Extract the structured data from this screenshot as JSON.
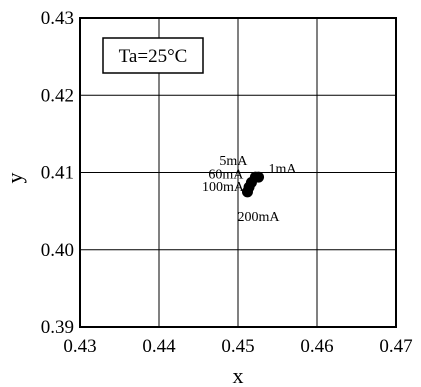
{
  "chart_data": {
    "type": "scatter",
    "title": "",
    "xlabel": "x",
    "ylabel": "y",
    "xlim": [
      0.43,
      0.47
    ],
    "ylim": [
      0.39,
      0.43
    ],
    "xticks": [
      "0.43",
      "0.44",
      "0.45",
      "0.46",
      "0.47"
    ],
    "yticks": [
      "0.39",
      "0.40",
      "0.41",
      "0.42",
      "0.43"
    ],
    "grid": true,
    "legend_box": "Ta=25°C",
    "series": [
      {
        "points": [
          {
            "label": "1mA",
            "x": 0.4526,
            "y": 0.4094
          },
          {
            "label": "5mA",
            "x": 0.4522,
            "y": 0.4094
          },
          {
            "label": "60mA",
            "x": 0.4517,
            "y": 0.4087
          },
          {
            "label": "100mA",
            "x": 0.4514,
            "y": 0.4081
          },
          {
            "label": "200mA",
            "x": 0.4512,
            "y": 0.4075
          }
        ]
      }
    ],
    "marker_color": "#000000"
  }
}
